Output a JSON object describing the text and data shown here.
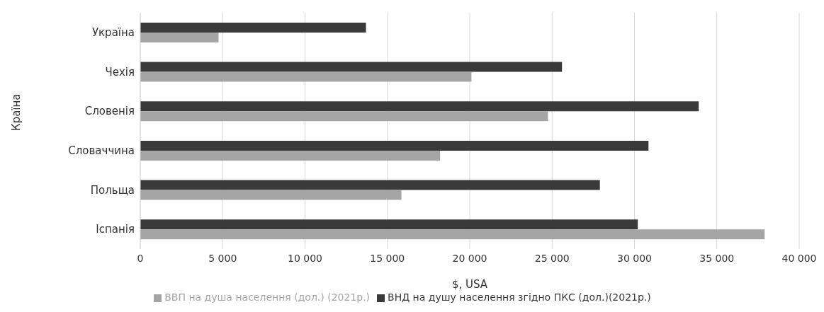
{
  "chart_data": {
    "type": "bar",
    "orientation": "horizontal",
    "xlabel": "$, USA",
    "ylabel": "Країна",
    "categories": [
      "Україна",
      "Чехія",
      "Словенія",
      "Словаччина",
      "Польща ",
      "Іспанія"
    ],
    "series": [
      {
        "name": "ВНД на душу населення згідно ПКС (дол.)(2021р.)",
        "color": "#3a3a3a",
        "values": [
          13700,
          25600,
          33900,
          30850,
          27900,
          30200
        ]
      },
      {
        "name": "ВВП на душа населення (дол.) (2021р.)",
        "color": "#a5a5a5",
        "values": [
          4750,
          20100,
          24750,
          18200,
          15850,
          37900
        ]
      }
    ],
    "xlim": [
      0,
      40000
    ],
    "xticks": [
      0,
      {
        "value": 5000,
        "label": "5 000"
      },
      {
        "value": 10000,
        "label": "10 000"
      },
      {
        "value": 15000,
        "label": "15 000"
      },
      {
        "value": 20000,
        "label": "20 000"
      },
      {
        "value": 25000,
        "label": "25 000"
      },
      {
        "value": 30000,
        "label": "30 000"
      },
      {
        "value": 35000,
        "label": "35 000"
      },
      {
        "value": 40000,
        "label": "40 000"
      }
    ],
    "grid": "x",
    "legend": "bottom"
  }
}
